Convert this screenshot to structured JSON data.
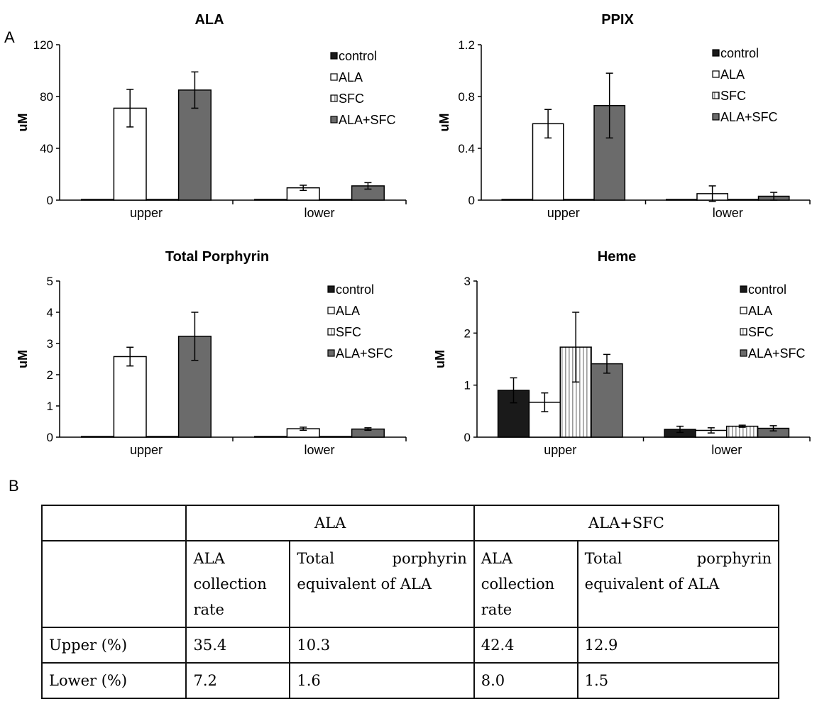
{
  "labels": {
    "panel_a": "A",
    "panel_b": "B"
  },
  "colors": {
    "control": "#1a1a1a",
    "ALA": "#ffffff",
    "SFC": "#ffffff",
    "ALA+SFC": "#6b6b6b",
    "axis": "#000000",
    "stroke": "#000000"
  },
  "chart_data": [
    {
      "type": "bar",
      "title": "ALA",
      "ylabel": "uM",
      "xlabel": "",
      "categories": [
        "upper",
        "lower"
      ],
      "ylim": [
        0,
        120
      ],
      "yticks": [
        "0",
        "40",
        "80",
        "120"
      ],
      "legend_position": "top-right",
      "series": [
        {
          "name": "control",
          "values": [
            0,
            0
          ],
          "errors": [
            0,
            0
          ]
        },
        {
          "name": "ALA",
          "values": [
            71,
            9.5
          ],
          "errors": [
            14.5,
            2
          ]
        },
        {
          "name": "SFC",
          "values": [
            0,
            0
          ],
          "errors": [
            0,
            0
          ]
        },
        {
          "name": "ALA+SFC",
          "values": [
            85,
            11
          ],
          "errors": [
            14,
            2.5
          ]
        }
      ]
    },
    {
      "type": "bar",
      "title": "PPIX",
      "ylabel": "uM",
      "xlabel": "",
      "categories": [
        "upper",
        "lower"
      ],
      "ylim": [
        0,
        1.2
      ],
      "yticks": [
        "0",
        "0.4",
        "0.8",
        "1.2"
      ],
      "legend_position": "top-right",
      "series": [
        {
          "name": "control",
          "values": [
            0,
            0
          ],
          "errors": [
            0,
            0
          ]
        },
        {
          "name": "ALA",
          "values": [
            0.59,
            0.05
          ],
          "errors": [
            0.11,
            0.06
          ]
        },
        {
          "name": "SFC",
          "values": [
            0,
            0
          ],
          "errors": [
            0,
            0
          ]
        },
        {
          "name": "ALA+SFC",
          "values": [
            0.73,
            0.03
          ],
          "errors": [
            0.25,
            0.03
          ]
        }
      ]
    },
    {
      "type": "bar",
      "title": "Total Porphyrin",
      "ylabel": "uM",
      "xlabel": "",
      "categories": [
        "upper",
        "lower"
      ],
      "ylim": [
        0,
        5
      ],
      "yticks": [
        "0",
        "1",
        "2",
        "3",
        "4",
        "5"
      ],
      "legend_position": "top-right",
      "series": [
        {
          "name": "control",
          "values": [
            0.01,
            0
          ],
          "errors": [
            0,
            0
          ]
        },
        {
          "name": "ALA",
          "values": [
            2.58,
            0.27
          ],
          "errors": [
            0.3,
            0.05
          ]
        },
        {
          "name": "SFC",
          "values": [
            0.02,
            0
          ],
          "errors": [
            0,
            0
          ]
        },
        {
          "name": "ALA+SFC",
          "values": [
            3.23,
            0.26
          ],
          "errors": [
            0.77,
            0.04
          ]
        }
      ]
    },
    {
      "type": "bar",
      "title": "Heme",
      "ylabel": "uM",
      "xlabel": "",
      "categories": [
        "upper",
        "lower"
      ],
      "ylim": [
        0,
        3
      ],
      "yticks": [
        "0",
        "1",
        "2",
        "3"
      ],
      "legend_position": "top-right",
      "series": [
        {
          "name": "control",
          "values": [
            0.9,
            0.15
          ],
          "errors": [
            0.24,
            0.06
          ]
        },
        {
          "name": "ALA",
          "values": [
            0.67,
            0.13
          ],
          "errors": [
            0.18,
            0.05
          ]
        },
        {
          "name": "SFC",
          "values": [
            1.73,
            0.21
          ],
          "errors": [
            0.67,
            0.02
          ]
        },
        {
          "name": "ALA+SFC",
          "values": [
            1.41,
            0.17
          ],
          "errors": [
            0.18,
            0.05
          ]
        }
      ]
    }
  ],
  "table": {
    "group_headers": [
      "ALA",
      "ALA+SFC"
    ],
    "sub_headers": {
      "rate": [
        "ALA",
        "collection",
        "rate"
      ],
      "total": [
        "Total",
        "porphyrin",
        "equivalent of ALA"
      ]
    },
    "rows": [
      {
        "label": "Upper (%)",
        "values": [
          "35.4",
          "10.3",
          "42.4",
          "12.9"
        ]
      },
      {
        "label": "Lower (%)",
        "values": [
          "7.2",
          "1.6",
          "8.0",
          "1.5"
        ]
      }
    ]
  }
}
